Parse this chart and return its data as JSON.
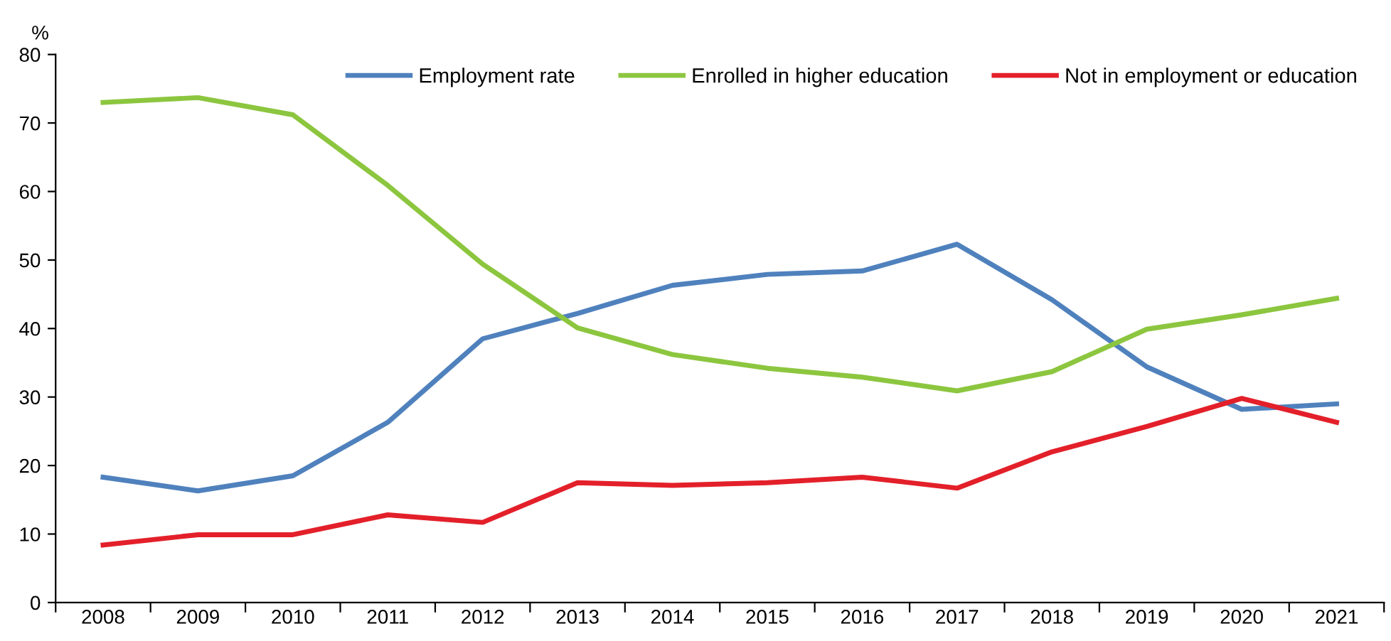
{
  "chart_data": {
    "type": "line",
    "ylabel": "%",
    "categories": [
      "2008",
      "2009",
      "2010",
      "2011",
      "2012",
      "2013",
      "2014",
      "2015",
      "2016",
      "2017",
      "2018",
      "2019",
      "2020",
      "2021"
    ],
    "series": [
      {
        "name": "Employment rate",
        "color": "#4f81bd",
        "values": [
          18.3,
          16.3,
          18.5,
          26.3,
          38.5,
          42.2,
          46.3,
          47.9,
          48.4,
          52.3,
          44.2,
          34.4,
          28.2,
          29.0
        ]
      },
      {
        "name": "Enrolled in higher education",
        "color": "#8cc63f",
        "values": [
          73.0,
          73.7,
          71.2,
          60.9,
          49.4,
          40.1,
          36.2,
          34.2,
          32.9,
          30.9,
          33.7,
          39.9,
          42.0,
          44.4
        ]
      },
      {
        "name": "Not in employment or education",
        "color": "#e3202a",
        "values": [
          8.4,
          9.9,
          9.9,
          12.8,
          11.7,
          17.5,
          17.1,
          17.5,
          18.3,
          16.7,
          22.0,
          25.7,
          29.8,
          26.3
        ]
      }
    ],
    "ylim": [
      0,
      80
    ],
    "yticks": [
      0,
      10,
      20,
      30,
      40,
      50,
      60,
      70,
      80
    ],
    "grid": false,
    "legend": "top",
    "marker": "none",
    "line_style": "solid"
  }
}
